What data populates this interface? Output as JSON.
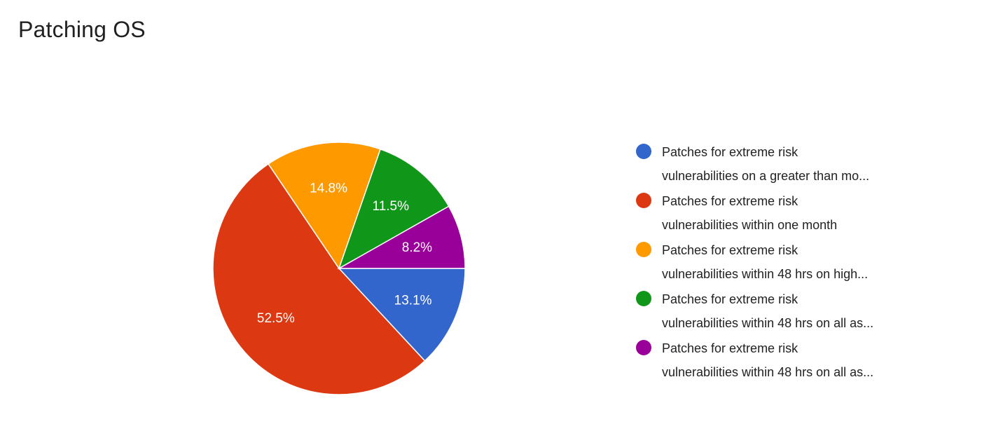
{
  "chart_data": {
    "type": "pie",
    "title": "Patching OS",
    "legend_position": "right",
    "slices": [
      {
        "label_line1": "Patches for extreme risk",
        "label_line2": "vulnerabilities on a greater than mo...",
        "value": 13.1,
        "display": "13.1%",
        "color": "#3366cc"
      },
      {
        "label_line1": "Patches for extreme risk",
        "label_line2": "vulnerabilities within one month",
        "value": 52.5,
        "display": "52.5%",
        "color": "#dc3912"
      },
      {
        "label_line1": "Patches for extreme risk",
        "label_line2": "vulnerabilities within 48 hrs on high...",
        "value": 14.8,
        "display": "14.8%",
        "color": "#ff9900"
      },
      {
        "label_line1": "Patches for extreme risk",
        "label_line2": "vulnerabilities within 48 hrs on all as...",
        "value": 11.5,
        "display": "11.5%",
        "color": "#109618"
      },
      {
        "label_line1": "Patches for extreme risk",
        "label_line2": "vulnerabilities within 48 hrs on all as...",
        "value": 8.2,
        "display": "8.2%",
        "color": "#990099"
      }
    ]
  }
}
